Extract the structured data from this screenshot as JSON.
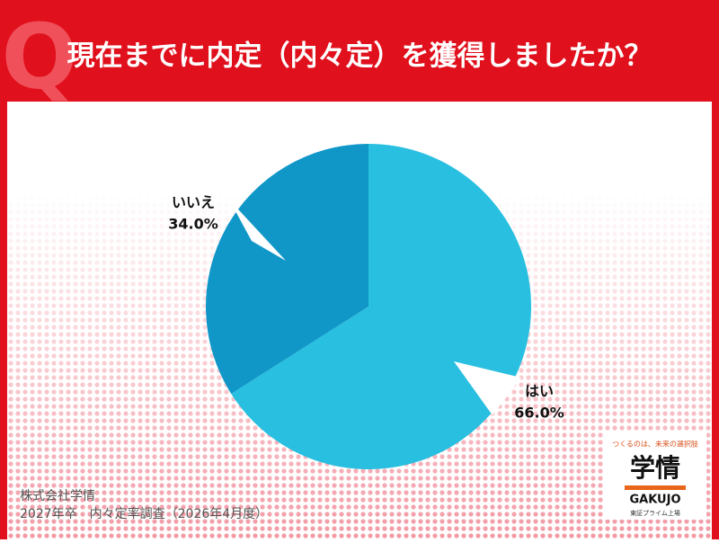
{
  "chart_data": {
    "type": "pie",
    "title": "現在までに内定（内々定）を獲得しましたか？",
    "categories": [
      "はい",
      "いいえ"
    ],
    "values": [
      66.0,
      34.0
    ],
    "value_labels": [
      "66.0%",
      "34.0%"
    ],
    "colors": [
      "#29bfe0",
      "#1097c8"
    ]
  },
  "badge": "Q",
  "footer": [
    "株式会社学情",
    "2027年卒　内々定率調査（2026年4月度）"
  ],
  "logo": {
    "tagline": "つくるのは、未来の選択肢",
    "name": "学情",
    "roman": "GAKUJO",
    "note": "東証プライム上場"
  }
}
